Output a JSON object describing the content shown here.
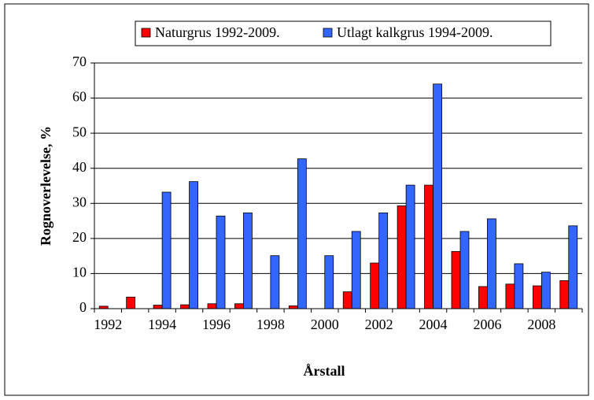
{
  "chart_data": {
    "type": "bar",
    "x_label": "Årstall",
    "y_label": "Rognoverlevelse, %",
    "categories": [
      "1992",
      null,
      "1994",
      null,
      "1996",
      null,
      "1998",
      null,
      "2000",
      null,
      "2002",
      null,
      "2004",
      null,
      "2006",
      null,
      "2008",
      null
    ],
    "series": [
      {
        "name": "Naturgrus 1992-2009.",
        "color": "#ff0000",
        "values": [
          0.7,
          3.3,
          1.0,
          1.1,
          1.4,
          1.4,
          null,
          0.8,
          null,
          4.8,
          13,
          29.3,
          35.2,
          16.3,
          6.3,
          7.0,
          6.5,
          8.0
        ]
      },
      {
        "name": "Utlagt kalkgrus 1994-2009.",
        "color": "#3366ff",
        "values": [
          null,
          null,
          33.2,
          36.2,
          26.4,
          27.3,
          15.1,
          42.7,
          15.1,
          22,
          27.3,
          35.2,
          64,
          22,
          25.6,
          12.8,
          10.4,
          23.6
        ]
      }
    ],
    "ylim": [
      0,
      70
    ],
    "yticks": [
      0,
      10,
      20,
      30,
      40,
      50,
      60,
      70
    ],
    "grid": true,
    "legend": "top"
  }
}
